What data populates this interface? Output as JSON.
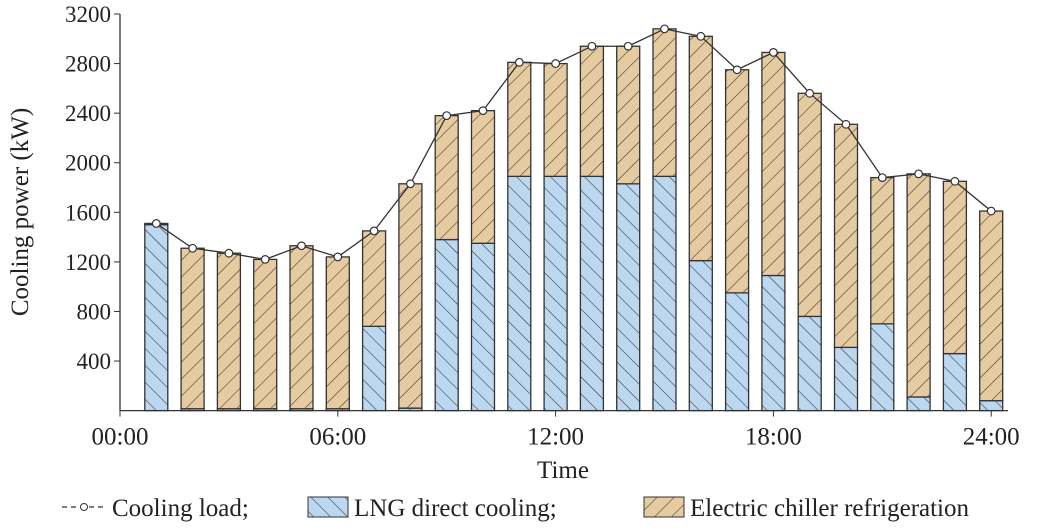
{
  "chart_data": {
    "type": "bar",
    "stacked": true,
    "xlabel": "Time",
    "ylabel": "Cooling power (kW)",
    "ylim": [
      0,
      3200
    ],
    "yticks": [
      "400",
      "800",
      "1200",
      "1600",
      "2000",
      "2400",
      "2800",
      "3200"
    ],
    "ytick_values": [
      400,
      800,
      1200,
      1600,
      2000,
      2400,
      2800,
      3200
    ],
    "xticks": [
      "00:00",
      "06:00",
      "12:00",
      "18:00",
      "24:00"
    ],
    "xtick_hours": [
      0,
      6,
      12,
      18,
      24
    ],
    "hours": [
      1,
      2,
      3,
      4,
      5,
      6,
      7,
      8,
      9,
      10,
      11,
      12,
      13,
      14,
      15,
      16,
      17,
      18,
      19,
      20,
      21,
      22,
      23,
      24
    ],
    "series": [
      {
        "name": "LNG direct cooling",
        "color": "#bcd8f1",
        "values": [
          1500,
          15,
          15,
          15,
          15,
          15,
          680,
          20,
          1380,
          1350,
          1890,
          1890,
          1890,
          1830,
          1890,
          1210,
          950,
          1090,
          760,
          510,
          700,
          110,
          460,
          80
        ]
      },
      {
        "name": "Electric chiller refrigeration",
        "color": "#e6cba0",
        "values": [
          10,
          1295,
          1255,
          1205,
          1315,
          1225,
          770,
          1810,
          1000,
          1070,
          920,
          910,
          1050,
          1110,
          1190,
          1810,
          1800,
          1800,
          1800,
          1800,
          1180,
          1800,
          1390,
          1530
        ]
      }
    ],
    "line": {
      "name": "Cooling load",
      "values": [
        1510,
        1310,
        1270,
        1220,
        1330,
        1240,
        1450,
        1830,
        2380,
        2420,
        2810,
        2800,
        2940,
        2940,
        3080,
        3020,
        2750,
        2890,
        2560,
        2310,
        1880,
        1910,
        1850,
        1610
      ]
    },
    "legend": {
      "position": "bottom",
      "labels": [
        "Cooling load;",
        "LNG direct cooling;",
        "Electric chiller refrigeration"
      ]
    }
  }
}
